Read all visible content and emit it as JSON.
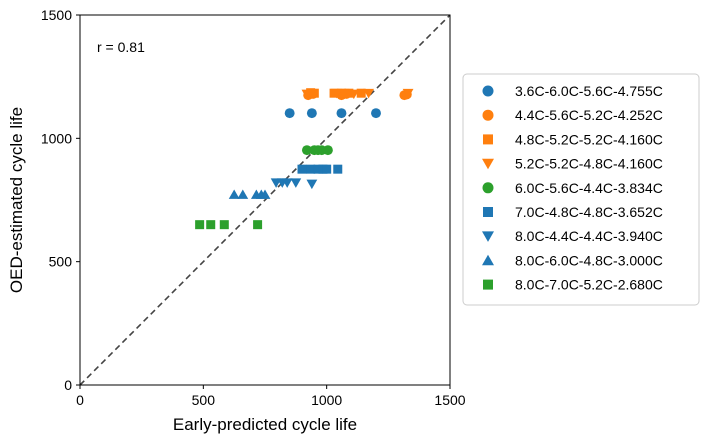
{
  "chart_data": {
    "type": "scatter",
    "xlabel": "Early-predicted cycle life",
    "ylabel": "OED-estimated cycle life",
    "xlim": [
      0,
      1500
    ],
    "ylim": [
      0,
      1500
    ],
    "xticks": [
      "0",
      "500",
      "1000",
      "1500"
    ],
    "yticks": [
      "0",
      "500",
      "1000",
      "1500"
    ],
    "annotation": "r = 0.81",
    "diagonal": "y = x dashed line",
    "grid": false,
    "legend_position": "right",
    "series": [
      {
        "name": "3.6C-6.0C-5.6C-4.755C",
        "color": "#1f77b4",
        "marker": "circle",
        "points": [
          [
            850,
            1102
          ],
          [
            940,
            1102
          ],
          [
            1060,
            1102
          ],
          [
            1200,
            1102
          ]
        ]
      },
      {
        "name": "4.4C-5.6C-5.2C-4.252C",
        "color": "#ff7f0e",
        "marker": "circle",
        "points": [
          [
            925,
            1175
          ],
          [
            945,
            1180
          ],
          [
            1060,
            1175
          ],
          [
            1080,
            1180
          ],
          [
            1315,
            1175
          ],
          [
            1325,
            1178
          ]
        ]
      },
      {
        "name": "4.8C-5.2C-5.2C-4.160C",
        "color": "#ff7f0e",
        "marker": "square",
        "points": [
          [
            935,
            1185
          ],
          [
            950,
            1183
          ],
          [
            1030,
            1183
          ],
          [
            1060,
            1183
          ],
          [
            1090,
            1183
          ],
          [
            1140,
            1183
          ]
        ]
      },
      {
        "name": "5.2C-5.2C-4.8C-4.160C",
        "color": "#ff7f0e",
        "marker": "triangle-down",
        "points": [
          [
            920,
            1180
          ],
          [
            1040,
            1183
          ],
          [
            1070,
            1183
          ],
          [
            1110,
            1180
          ],
          [
            1170,
            1183
          ],
          [
            1330,
            1183
          ]
        ]
      },
      {
        "name": "6.0C-5.6C-4.4C-3.834C",
        "color": "#2ca02c",
        "marker": "circle",
        "points": [
          [
            920,
            952
          ],
          [
            950,
            952
          ],
          [
            965,
            952
          ],
          [
            980,
            952
          ],
          [
            1005,
            952
          ]
        ]
      },
      {
        "name": "7.0C-4.8C-4.8C-3.652C",
        "color": "#1f77b4",
        "marker": "square",
        "points": [
          [
            900,
            875
          ],
          [
            935,
            875
          ],
          [
            965,
            875
          ],
          [
            985,
            875
          ],
          [
            1000,
            875
          ],
          [
            1045,
            875
          ]
        ]
      },
      {
        "name": "8.0C-4.4C-4.4C-3.940C",
        "color": "#1f77b4",
        "marker": "triangle-down",
        "points": [
          [
            795,
            820
          ],
          [
            820,
            820
          ],
          [
            840,
            820
          ],
          [
            875,
            820
          ],
          [
            940,
            815
          ]
        ]
      },
      {
        "name": "8.0C-6.0C-4.8C-3.000C",
        "color": "#1f77b4",
        "marker": "triangle-up",
        "points": [
          [
            625,
            772
          ],
          [
            660,
            772
          ],
          [
            715,
            772
          ],
          [
            735,
            772
          ],
          [
            750,
            772
          ]
        ]
      },
      {
        "name": "8.0C-7.0C-5.2C-2.680C",
        "color": "#2ca02c",
        "marker": "square",
        "points": [
          [
            485,
            650
          ],
          [
            530,
            650
          ],
          [
            585,
            650
          ],
          [
            720,
            650
          ]
        ]
      }
    ]
  }
}
